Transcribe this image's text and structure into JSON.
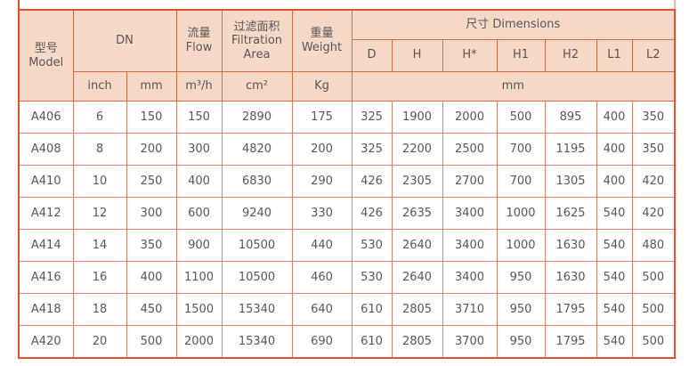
{
  "table": {
    "header": {
      "model": {
        "zh": "型号",
        "en": "Model"
      },
      "dn": "DN",
      "flow": {
        "zh": "流量",
        "en": "Flow"
      },
      "filtration": {
        "zh": "过滤面积",
        "en": "Filtration",
        "en2": "Area"
      },
      "weight": {
        "zh": "重量",
        "en": "Weight"
      },
      "dimensions": "尺寸 Dimensions",
      "dim_cols": [
        "D",
        "H",
        "H*",
        "H1",
        "H2",
        "L1",
        "L2"
      ],
      "units": {
        "dn_inch": "inch",
        "dn_mm": "mm",
        "flow": "m³/h",
        "area": "cm²",
        "weight": "Kg",
        "dim": "mm"
      }
    },
    "rows": [
      [
        "A406",
        "6",
        "150",
        "150",
        "2890",
        "175",
        "325",
        "1900",
        "2000",
        "500",
        "895",
        "400",
        "350"
      ],
      [
        "A408",
        "8",
        "200",
        "300",
        "4820",
        "200",
        "325",
        "2200",
        "2500",
        "700",
        "1195",
        "400",
        "350"
      ],
      [
        "A410",
        "10",
        "250",
        "400",
        "6830",
        "290",
        "426",
        "2305",
        "2700",
        "700",
        "1305",
        "400",
        "420"
      ],
      [
        "A412",
        "12",
        "300",
        "600",
        "9240",
        "330",
        "426",
        "2635",
        "3400",
        "1000",
        "1625",
        "540",
        "420"
      ],
      [
        "A414",
        "14",
        "350",
        "900",
        "10500",
        "440",
        "530",
        "2640",
        "3400",
        "1000",
        "1630",
        "540",
        "480"
      ],
      [
        "A416",
        "16",
        "400",
        "1100",
        "10500",
        "460",
        "530",
        "2640",
        "3400",
        "950",
        "1630",
        "540",
        "500"
      ],
      [
        "A418",
        "18",
        "450",
        "1500",
        "15340",
        "640",
        "610",
        "2805",
        "3710",
        "950",
        "1795",
        "540",
        "500"
      ],
      [
        "A420",
        "20",
        "500",
        "2000",
        "15340",
        "690",
        "610",
        "2805",
        "3700",
        "950",
        "1795",
        "540",
        "500"
      ]
    ],
    "colors": {
      "header_bg": "#f6d8c6",
      "header_border": "#dc6b49",
      "body_border": "#ea8273",
      "outer_border": "#e0512f",
      "text": "#595757"
    }
  }
}
